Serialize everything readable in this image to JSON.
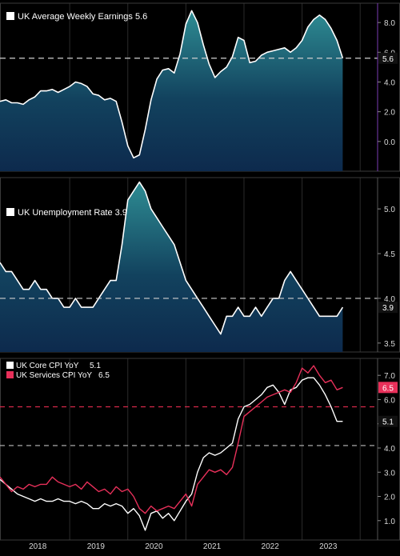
{
  "chart_data": [
    {
      "type": "area",
      "title": "UK Average Weekly Earnings",
      "last_value": "5.6",
      "reference_line": 5.6,
      "ylim": [
        -2.0,
        9.3
      ],
      "yticks": [
        0.0,
        2.0,
        4.0,
        6.0,
        8.0
      ],
      "ytick_labels": [
        "0.0",
        "2.0",
        "4.0",
        "6.0",
        "8.0"
      ],
      "series": [
        {
          "name": "UK Average Weekly Earnings",
          "color": "#ffffff",
          "x": [
            2017.8,
            2017.9,
            2018.0,
            2018.1,
            2018.2,
            2018.3,
            2018.4,
            2018.5,
            2018.6,
            2018.7,
            2018.8,
            2018.9,
            2019.0,
            2019.1,
            2019.2,
            2019.3,
            2019.4,
            2019.5,
            2019.6,
            2019.7,
            2019.8,
            2019.9,
            2020.0,
            2020.1,
            2020.2,
            2020.3,
            2020.4,
            2020.5,
            2020.6,
            2020.7,
            2020.8,
            2020.9,
            2021.0,
            2021.1,
            2021.2,
            2021.3,
            2021.4,
            2021.5,
            2021.6,
            2021.7,
            2021.8,
            2021.9,
            2022.0,
            2022.1,
            2022.2,
            2022.3,
            2022.4,
            2022.5,
            2022.6,
            2022.7,
            2022.8,
            2022.9,
            2023.0,
            2023.1,
            2023.2,
            2023.3,
            2023.4,
            2023.5,
            2023.6,
            2023.7
          ],
          "values": [
            2.7,
            2.8,
            2.6,
            2.6,
            2.5,
            2.8,
            3.0,
            3.4,
            3.4,
            3.5,
            3.3,
            3.5,
            3.7,
            4.0,
            3.9,
            3.7,
            3.2,
            3.1,
            2.8,
            2.9,
            2.7,
            1.3,
            -0.3,
            -1.1,
            -0.9,
            0.8,
            2.8,
            4.2,
            4.8,
            4.9,
            4.6,
            5.9,
            7.9,
            8.8,
            8.0,
            6.5,
            5.2,
            4.3,
            4.7,
            5.0,
            5.7,
            7.0,
            6.8,
            5.3,
            5.4,
            5.8,
            6.0,
            6.1,
            6.2,
            6.3,
            6.0,
            6.3,
            6.8,
            7.7,
            8.2,
            8.5,
            8.2,
            7.6,
            6.8,
            5.6
          ]
        }
      ]
    },
    {
      "type": "area",
      "title": "UK Unemployment Rate",
      "last_value": "3.9",
      "reference_line": 4.0,
      "ylim": [
        3.4,
        5.35
      ],
      "yticks": [
        3.5,
        4.0,
        4.5,
        5.0
      ],
      "ytick_labels": [
        "3.5",
        "4.0",
        "4.5",
        "5.0"
      ],
      "series": [
        {
          "name": "UK Unemployment Rate",
          "color": "#ffffff",
          "x": [
            2017.8,
            2017.9,
            2018.0,
            2018.1,
            2018.2,
            2018.3,
            2018.4,
            2018.5,
            2018.6,
            2018.7,
            2018.8,
            2018.9,
            2019.0,
            2019.1,
            2019.2,
            2019.3,
            2019.4,
            2019.5,
            2019.6,
            2019.7,
            2019.8,
            2019.9,
            2020.0,
            2020.1,
            2020.2,
            2020.3,
            2020.4,
            2020.5,
            2020.6,
            2020.7,
            2020.8,
            2020.9,
            2021.0,
            2021.1,
            2021.2,
            2021.3,
            2021.4,
            2021.5,
            2021.6,
            2021.7,
            2021.8,
            2021.9,
            2022.0,
            2022.1,
            2022.2,
            2022.3,
            2022.4,
            2022.5,
            2022.6,
            2022.7,
            2022.8,
            2022.9,
            2023.0,
            2023.1,
            2023.2,
            2023.3,
            2023.4,
            2023.5,
            2023.6,
            2023.7
          ],
          "values": [
            4.4,
            4.3,
            4.3,
            4.2,
            4.1,
            4.1,
            4.2,
            4.1,
            4.1,
            4.0,
            4.0,
            3.9,
            3.9,
            4.0,
            3.9,
            3.9,
            3.9,
            4.0,
            4.1,
            4.2,
            4.2,
            4.6,
            5.1,
            5.2,
            5.3,
            5.2,
            5.0,
            4.9,
            4.8,
            4.7,
            4.6,
            4.4,
            4.2,
            4.1,
            4.0,
            3.9,
            3.8,
            3.7,
            3.6,
            3.8,
            3.8,
            3.9,
            3.8,
            3.8,
            3.9,
            3.8,
            3.9,
            4.0,
            4.0,
            4.2,
            4.3,
            4.2,
            4.1,
            4.0,
            3.9,
            3.8,
            3.8,
            3.8,
            3.8,
            3.9
          ]
        }
      ]
    },
    {
      "type": "line",
      "ylim": [
        0.2,
        7.7
      ],
      "yticks": [
        1.0,
        2.0,
        3.0,
        4.0,
        5.0,
        6.0,
        7.0
      ],
      "ytick_labels": [
        "1.0",
        "2.0",
        "3.0",
        "4.0",
        "5.0",
        "6.0",
        "7.0"
      ],
      "reference_lines": [
        {
          "value": 5.7,
          "color": "#d8294a"
        },
        {
          "value": 4.1,
          "color": "#bbbbbb"
        }
      ],
      "xlim": [
        2017.8,
        2024.3
      ],
      "xticks": [
        2018.45,
        2019.45,
        2020.45,
        2021.45,
        2022.45,
        2023.45
      ],
      "xtick_labels": [
        "2018",
        "2019",
        "2020",
        "2021",
        "2022",
        "2023"
      ],
      "legend": "top-left",
      "series": [
        {
          "name": "UK Core CPI YoY",
          "label": "5.1",
          "color": "#ffffff",
          "x": [
            2017.8,
            2017.9,
            2018.0,
            2018.1,
            2018.2,
            2018.3,
            2018.4,
            2018.5,
            2018.6,
            2018.7,
            2018.8,
            2018.9,
            2019.0,
            2019.1,
            2019.2,
            2019.3,
            2019.4,
            2019.5,
            2019.6,
            2019.7,
            2019.8,
            2019.9,
            2020.0,
            2020.1,
            2020.2,
            2020.3,
            2020.4,
            2020.5,
            2020.6,
            2020.7,
            2020.8,
            2020.9,
            2021.0,
            2021.1,
            2021.2,
            2021.3,
            2021.4,
            2021.5,
            2021.6,
            2021.7,
            2021.8,
            2021.9,
            2022.0,
            2022.1,
            2022.2,
            2022.3,
            2022.4,
            2022.5,
            2022.6,
            2022.7,
            2022.8,
            2022.9,
            2023.0,
            2023.1,
            2023.2,
            2023.3,
            2023.4,
            2023.5,
            2023.6,
            2023.7
          ],
          "values": [
            2.7,
            2.5,
            2.3,
            2.1,
            2.0,
            1.9,
            1.8,
            1.9,
            1.8,
            1.8,
            1.9,
            1.8,
            1.8,
            1.7,
            1.8,
            1.7,
            1.5,
            1.5,
            1.7,
            1.6,
            1.7,
            1.6,
            1.3,
            1.5,
            1.2,
            0.6,
            1.3,
            1.4,
            1.1,
            1.3,
            1.0,
            1.4,
            1.8,
            2.1,
            3.0,
            3.6,
            3.8,
            3.7,
            3.8,
            4.0,
            4.2,
            5.2,
            5.7,
            5.8,
            6.0,
            6.2,
            6.5,
            6.6,
            6.3,
            5.8,
            6.4,
            6.5,
            6.8,
            6.9,
            6.9,
            6.6,
            6.2,
            5.7,
            5.1,
            5.1
          ]
        },
        {
          "name": "UK Services CPI YoY",
          "label": "6.5",
          "color": "#e8305a",
          "x": [
            2017.8,
            2017.9,
            2018.0,
            2018.1,
            2018.2,
            2018.3,
            2018.4,
            2018.5,
            2018.6,
            2018.7,
            2018.8,
            2018.9,
            2019.0,
            2019.1,
            2019.2,
            2019.3,
            2019.4,
            2019.5,
            2019.6,
            2019.7,
            2019.8,
            2019.9,
            2020.0,
            2020.1,
            2020.2,
            2020.3,
            2020.4,
            2020.5,
            2020.6,
            2020.7,
            2020.8,
            2020.9,
            2021.0,
            2021.1,
            2021.2,
            2021.3,
            2021.4,
            2021.5,
            2021.6,
            2021.7,
            2021.8,
            2021.9,
            2022.0,
            2022.1,
            2022.2,
            2022.3,
            2022.4,
            2022.5,
            2022.6,
            2022.7,
            2022.8,
            2022.9,
            2023.0,
            2023.1,
            2023.2,
            2023.3,
            2023.4,
            2023.5,
            2023.6,
            2023.7
          ],
          "values": [
            2.8,
            2.5,
            2.2,
            2.4,
            2.3,
            2.5,
            2.4,
            2.5,
            2.5,
            2.8,
            2.6,
            2.5,
            2.4,
            2.5,
            2.3,
            2.6,
            2.4,
            2.2,
            2.3,
            2.1,
            2.4,
            2.2,
            2.3,
            2.0,
            1.5,
            1.3,
            1.6,
            1.4,
            1.5,
            1.6,
            1.5,
            1.8,
            2.1,
            1.6,
            2.5,
            2.8,
            3.1,
            3.0,
            3.1,
            2.9,
            3.2,
            4.2,
            5.3,
            5.5,
            5.7,
            5.9,
            6.1,
            6.2,
            6.3,
            6.4,
            6.3,
            6.7,
            7.3,
            7.1,
            7.4,
            7.0,
            6.7,
            6.8,
            6.4,
            6.5
          ]
        }
      ]
    }
  ]
}
